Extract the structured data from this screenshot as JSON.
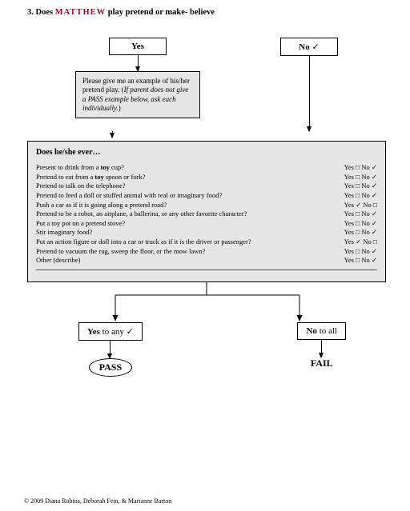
{
  "question": {
    "number": "3.",
    "prefix": "Does",
    "name": "MATTHEW",
    "suffix": "play pretend or make- believe"
  },
  "top": {
    "yes": "Yes",
    "no": "No",
    "no_checked": "✓"
  },
  "example": {
    "text": "Please give me an example of his/her pretend play. (",
    "italic": "If parent does not give a PASS example below, ask each individually.",
    "close": ")"
  },
  "big": {
    "header": "Does he/she ever…",
    "items": [
      {
        "text": "Present to drink from a <b>toy</b> cup?",
        "yes": false,
        "no": true
      },
      {
        "text": "Pretend to eat from a <b>toy</b> spoon or fork?",
        "yes": false,
        "no": true
      },
      {
        "text": "Pretend to talk on the telephone?",
        "yes": false,
        "no": true
      },
      {
        "text": "Pretend to feed a doll or stuffed animal with real or imaginary food?",
        "yes": false,
        "no": true
      },
      {
        "text": "Push a car as if it is going along a pretend road?",
        "yes": true,
        "no": false
      },
      {
        "text": "Pretend to be a robot, an airplane, a ballerina, or any other favorite character?",
        "yes": false,
        "no": true
      },
      {
        "text": "Put a toy pot on a pretend stove?",
        "yes": false,
        "no": true
      },
      {
        "text": "Stir imaginary food?",
        "yes": false,
        "no": true
      },
      {
        "text": "Put an action figure or doll into a car or truck as if it is the driver or passenger?",
        "yes": true,
        "no": false
      },
      {
        "text": "Pretend to vacuum the rug, sweep the floor, or the mow lawn?",
        "yes": false,
        "no": true
      },
      {
        "text": "Other (describe)",
        "yes": false,
        "no": true
      }
    ]
  },
  "bottom": {
    "yes_any_a": "Yes",
    "yes_any_b": " to any",
    "yes_any_check": "✓",
    "no_all_a": "No",
    "no_all_b": " to all",
    "pass": "PASS",
    "fail": "FAIL"
  },
  "footer": "©  2009 Diana Robins, Deborah Fein, & Marianne Barton",
  "colors": {
    "box_bg": "#e6e6e6",
    "hand": "#b3002d"
  }
}
